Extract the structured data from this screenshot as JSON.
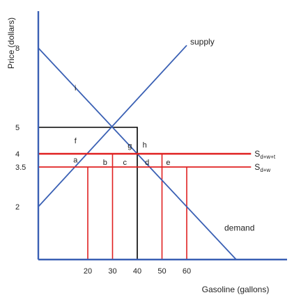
{
  "chart_data": {
    "type": "line",
    "title": "",
    "xlabel": "Gasoline (gallons)",
    "ylabel": "Price (dollars)",
    "xlim": [
      0,
      97
    ],
    "ylim": [
      0,
      10
    ],
    "x_ticks": [
      20,
      30,
      40,
      50,
      60
    ],
    "y_ticks": [
      2,
      3.5,
      4,
      5,
      8
    ],
    "series": [
      {
        "name": "supply",
        "color": "#3a60b4",
        "points": [
          [
            0,
            2
          ],
          [
            60,
            8.1
          ]
        ]
      },
      {
        "name": "demand",
        "color": "#3a60b4",
        "points": [
          [
            0,
            8
          ],
          [
            80,
            0
          ]
        ]
      },
      {
        "name": "S",
        "subscript": "d+w+t",
        "color": "#e02020",
        "points": [
          [
            0,
            4
          ],
          [
            86,
            4
          ]
        ]
      },
      {
        "name": "S",
        "subscript": "d+w",
        "color": "#e02020",
        "points": [
          [
            0,
            3.5
          ],
          [
            86,
            3.5
          ]
        ]
      }
    ],
    "reference_lines": [
      {
        "color": "#000000",
        "points": [
          [
            0,
            5
          ],
          [
            40,
            5
          ],
          [
            40,
            0
          ]
        ]
      },
      {
        "color": "#e02020",
        "points": [
          [
            20,
            3.5
          ],
          [
            20,
            0
          ]
        ]
      },
      {
        "color": "#e02020",
        "points": [
          [
            30,
            4
          ],
          [
            30,
            0
          ]
        ]
      },
      {
        "color": "#e02020",
        "points": [
          [
            50,
            4
          ],
          [
            50,
            0
          ]
        ]
      },
      {
        "color": "#e02020",
        "points": [
          [
            60,
            3.5
          ],
          [
            60,
            0
          ]
        ]
      }
    ],
    "region_labels": [
      {
        "text": "i",
        "x": 15,
        "y": 6.5
      },
      {
        "text": "f",
        "x": 15,
        "y": 4.5
      },
      {
        "text": "a",
        "x": 15,
        "y": 3.77
      },
      {
        "text": "b",
        "x": 27,
        "y": 3.68
      },
      {
        "text": "c",
        "x": 35,
        "y": 3.68
      },
      {
        "text": "d",
        "x": 44,
        "y": 3.68
      },
      {
        "text": "e",
        "x": 52.5,
        "y": 3.68
      },
      {
        "text": "g",
        "x": 37,
        "y": 4.32
      },
      {
        "text": "h",
        "x": 43,
        "y": 4.34
      }
    ],
    "grid": false,
    "legend": "none"
  }
}
